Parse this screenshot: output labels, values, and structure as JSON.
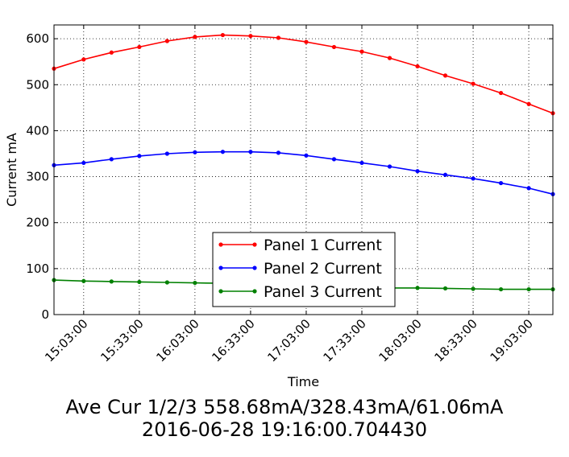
{
  "chart_data": {
    "type": "line",
    "xlabel": "Time",
    "ylabel": "Current mA",
    "ylim": [
      0,
      630
    ],
    "xlim": [
      "14:47:00",
      "19:16:00"
    ],
    "x_ticks": [
      "15:03:00",
      "15:33:00",
      "16:03:00",
      "16:33:00",
      "17:03:00",
      "17:33:00",
      "18:03:00",
      "18:33:00",
      "19:03:00"
    ],
    "y_ticks": [
      0,
      100,
      200,
      300,
      400,
      500,
      600
    ],
    "grid": true,
    "legend_position": "lower-center",
    "x": [
      "14:47:00",
      "15:03:00",
      "15:18:00",
      "15:33:00",
      "15:48:00",
      "16:03:00",
      "16:18:00",
      "16:33:00",
      "16:48:00",
      "17:03:00",
      "17:18:00",
      "17:33:00",
      "17:48:00",
      "18:03:00",
      "18:18:00",
      "18:33:00",
      "18:48:00",
      "19:03:00",
      "19:16:00"
    ],
    "series": [
      {
        "name": "Panel 1 Current",
        "color": "#ff0000",
        "values": [
          535,
          555,
          570,
          582,
          595,
          604,
          608,
          606,
          602,
          593,
          582,
          572,
          558,
          540,
          520,
          502,
          482,
          458,
          438
        ]
      },
      {
        "name": "Panel 2 Current",
        "color": "#0000ff",
        "values": [
          325,
          330,
          338,
          345,
          350,
          353,
          354,
          354,
          352,
          346,
          338,
          330,
          322,
          312,
          304,
          296,
          286,
          275,
          262
        ]
      },
      {
        "name": "Panel 3 Current",
        "color": "#008000",
        "values": [
          75,
          73,
          72,
          71,
          70,
          69,
          68,
          66,
          64,
          62,
          60,
          59,
          58,
          58,
          57,
          56,
          55,
          55,
          55
        ]
      }
    ]
  },
  "caption": {
    "line1": "Ave Cur 1/2/3 558.68mA/328.43mA/61.06mA",
    "line2": "2016-06-28 19:16:00.704430"
  }
}
